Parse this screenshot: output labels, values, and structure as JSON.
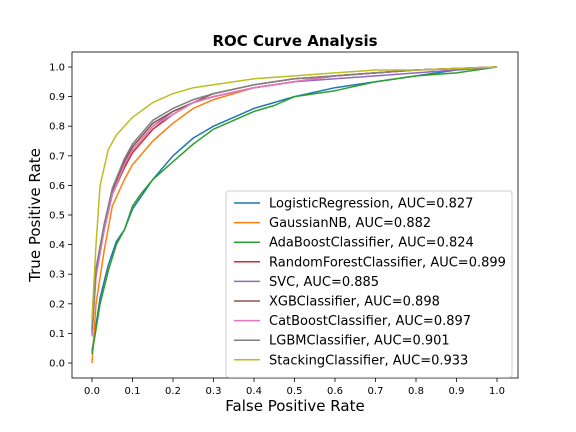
{
  "chart_data": {
    "type": "line",
    "title": "ROC Curve Analysis",
    "xlabel": "False Positive Rate",
    "ylabel": "True Positive Rate",
    "xlim": [
      0.0,
      1.0
    ],
    "ylim": [
      0.0,
      1.0
    ],
    "x_ticks": [
      "0.0",
      "0.1",
      "0.2",
      "0.3",
      "0.4",
      "0.5",
      "0.6",
      "0.7",
      "0.8",
      "0.9",
      "1.0"
    ],
    "y_ticks": [
      "0.0",
      "0.1",
      "0.2",
      "0.3",
      "0.4",
      "0.5",
      "0.6",
      "0.7",
      "0.8",
      "0.9",
      "1.0"
    ],
    "grid": false,
    "legend_position": "lower-right",
    "series": [
      {
        "name": "LogisticRegression, AUC=0.827",
        "color": "#1f77b4",
        "points": [
          [
            0,
            0.04
          ],
          [
            0.02,
            0.22
          ],
          [
            0.04,
            0.33
          ],
          [
            0.06,
            0.41
          ],
          [
            0.08,
            0.45
          ],
          [
            0.1,
            0.52
          ],
          [
            0.12,
            0.56
          ],
          [
            0.15,
            0.62
          ],
          [
            0.2,
            0.7
          ],
          [
            0.25,
            0.76
          ],
          [
            0.3,
            0.8
          ],
          [
            0.35,
            0.83
          ],
          [
            0.4,
            0.86
          ],
          [
            0.45,
            0.88
          ],
          [
            0.5,
            0.9
          ],
          [
            0.6,
            0.93
          ],
          [
            0.7,
            0.95
          ],
          [
            0.8,
            0.97
          ],
          [
            0.9,
            0.99
          ],
          [
            1.0,
            1.0
          ]
        ]
      },
      {
        "name": "GaussianNB, AUC=0.882",
        "color": "#ff7f0e",
        "points": [
          [
            0,
            0.0
          ],
          [
            0.01,
            0.2
          ],
          [
            0.03,
            0.38
          ],
          [
            0.05,
            0.53
          ],
          [
            0.08,
            0.62
          ],
          [
            0.1,
            0.67
          ],
          [
            0.15,
            0.75
          ],
          [
            0.2,
            0.81
          ],
          [
            0.25,
            0.86
          ],
          [
            0.3,
            0.89
          ],
          [
            0.4,
            0.93
          ],
          [
            0.5,
            0.95
          ],
          [
            0.6,
            0.97
          ],
          [
            0.7,
            0.98
          ],
          [
            0.8,
            0.99
          ],
          [
            1.0,
            1.0
          ]
        ]
      },
      {
        "name": "AdaBoostClassifier, AUC=0.824",
        "color": "#2ca02c",
        "points": [
          [
            0,
            0.03
          ],
          [
            0.02,
            0.2
          ],
          [
            0.04,
            0.31
          ],
          [
            0.06,
            0.4
          ],
          [
            0.08,
            0.45
          ],
          [
            0.1,
            0.53
          ],
          [
            0.12,
            0.57
          ],
          [
            0.15,
            0.62
          ],
          [
            0.2,
            0.68
          ],
          [
            0.25,
            0.74
          ],
          [
            0.3,
            0.79
          ],
          [
            0.35,
            0.82
          ],
          [
            0.4,
            0.85
          ],
          [
            0.45,
            0.87
          ],
          [
            0.5,
            0.9
          ],
          [
            0.6,
            0.92
          ],
          [
            0.7,
            0.95
          ],
          [
            0.8,
            0.97
          ],
          [
            0.9,
            0.98
          ],
          [
            1.0,
            1.0
          ]
        ]
      },
      {
        "name": "RandomForestClassifier, AUC=0.899",
        "color": "#d62728",
        "points": [
          [
            0,
            0.1
          ],
          [
            0.01,
            0.3
          ],
          [
            0.03,
            0.45
          ],
          [
            0.05,
            0.57
          ],
          [
            0.08,
            0.66
          ],
          [
            0.1,
            0.71
          ],
          [
            0.15,
            0.79
          ],
          [
            0.2,
            0.84
          ],
          [
            0.25,
            0.88
          ],
          [
            0.3,
            0.9
          ],
          [
            0.4,
            0.93
          ],
          [
            0.5,
            0.95
          ],
          [
            0.6,
            0.97
          ],
          [
            0.7,
            0.98
          ],
          [
            0.8,
            0.99
          ],
          [
            1.0,
            1.0
          ]
        ]
      },
      {
        "name": "SVC, AUC=0.885",
        "color": "#9467bd",
        "points": [
          [
            0,
            0.12
          ],
          [
            0.01,
            0.31
          ],
          [
            0.03,
            0.45
          ],
          [
            0.05,
            0.57
          ],
          [
            0.08,
            0.67
          ],
          [
            0.1,
            0.72
          ],
          [
            0.15,
            0.8
          ],
          [
            0.2,
            0.85
          ],
          [
            0.25,
            0.88
          ],
          [
            0.3,
            0.9
          ],
          [
            0.4,
            0.93
          ],
          [
            0.5,
            0.95
          ],
          [
            0.6,
            0.96
          ],
          [
            0.7,
            0.97
          ],
          [
            0.8,
            0.98
          ],
          [
            1.0,
            1.0
          ]
        ]
      },
      {
        "name": "XGBClassifier, AUC=0.898",
        "color": "#8c564b",
        "points": [
          [
            0,
            0.1
          ],
          [
            0.01,
            0.31
          ],
          [
            0.03,
            0.46
          ],
          [
            0.05,
            0.58
          ],
          [
            0.08,
            0.68
          ],
          [
            0.1,
            0.73
          ],
          [
            0.15,
            0.81
          ],
          [
            0.2,
            0.85
          ],
          [
            0.25,
            0.88
          ],
          [
            0.3,
            0.91
          ],
          [
            0.4,
            0.94
          ],
          [
            0.5,
            0.96
          ],
          [
            0.6,
            0.97
          ],
          [
            0.7,
            0.98
          ],
          [
            0.8,
            0.99
          ],
          [
            1.0,
            1.0
          ]
        ]
      },
      {
        "name": "CatBoostClassifier, AUC=0.897",
        "color": "#e377c2",
        "points": [
          [
            0,
            0.09
          ],
          [
            0.01,
            0.29
          ],
          [
            0.03,
            0.45
          ],
          [
            0.05,
            0.57
          ],
          [
            0.08,
            0.67
          ],
          [
            0.1,
            0.72
          ],
          [
            0.15,
            0.8
          ],
          [
            0.2,
            0.84
          ],
          [
            0.25,
            0.88
          ],
          [
            0.3,
            0.9
          ],
          [
            0.4,
            0.93
          ],
          [
            0.5,
            0.95
          ],
          [
            0.6,
            0.97
          ],
          [
            0.7,
            0.98
          ],
          [
            0.8,
            0.99
          ],
          [
            1.0,
            1.0
          ]
        ]
      },
      {
        "name": "LGBMClassifier, AUC=0.901",
        "color": "#7f7f7f",
        "points": [
          [
            0,
            0.11
          ],
          [
            0.01,
            0.32
          ],
          [
            0.03,
            0.47
          ],
          [
            0.05,
            0.59
          ],
          [
            0.08,
            0.69
          ],
          [
            0.1,
            0.74
          ],
          [
            0.15,
            0.82
          ],
          [
            0.2,
            0.86
          ],
          [
            0.25,
            0.89
          ],
          [
            0.3,
            0.91
          ],
          [
            0.4,
            0.94
          ],
          [
            0.5,
            0.96
          ],
          [
            0.6,
            0.97
          ],
          [
            0.7,
            0.98
          ],
          [
            0.8,
            0.99
          ],
          [
            1.0,
            1.0
          ]
        ]
      },
      {
        "name": "StackingClassifier, AUC=0.933",
        "color": "#bcbd22",
        "points": [
          [
            0,
            0.15
          ],
          [
            0.01,
            0.4
          ],
          [
            0.02,
            0.6
          ],
          [
            0.04,
            0.72
          ],
          [
            0.06,
            0.77
          ],
          [
            0.08,
            0.8
          ],
          [
            0.1,
            0.83
          ],
          [
            0.15,
            0.88
          ],
          [
            0.2,
            0.91
          ],
          [
            0.25,
            0.93
          ],
          [
            0.3,
            0.94
          ],
          [
            0.4,
            0.96
          ],
          [
            0.5,
            0.97
          ],
          [
            0.6,
            0.98
          ],
          [
            0.7,
            0.99
          ],
          [
            0.8,
            0.99
          ],
          [
            1.0,
            1.0
          ]
        ]
      }
    ]
  }
}
